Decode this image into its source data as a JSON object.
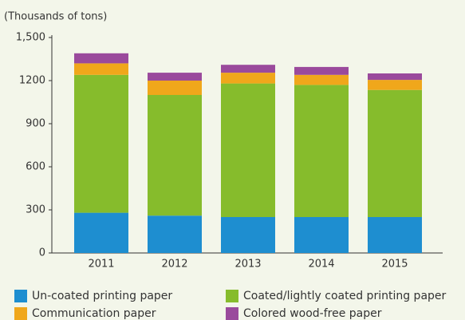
{
  "chart_data": {
    "type": "stacked_bar",
    "y_axis_label": "(Thousands of tons)",
    "categories": [
      "2011",
      "2012",
      "2013",
      "2014",
      "2015"
    ],
    "series": [
      {
        "name": "Un-coated printing paper",
        "color": "#1e8ed0",
        "values": [
          280,
          260,
          250,
          250,
          250
        ]
      },
      {
        "name": "Coated/lightly coated printing paper",
        "color": "#86bc2c",
        "values": [
          960,
          840,
          930,
          920,
          885
        ]
      },
      {
        "name": "Communication paper",
        "color": "#f0a71b",
        "values": [
          80,
          100,
          75,
          70,
          70
        ]
      },
      {
        "name": "Colored wood-free paper",
        "color": "#9a4a9c",
        "values": [
          70,
          55,
          55,
          55,
          45
        ]
      }
    ],
    "ylim": [
      0,
      1500
    ],
    "yticks": [
      0,
      300,
      600,
      900,
      1200,
      {
        "value": 1500,
        "label": "1,500"
      }
    ],
    "grid": false
  }
}
